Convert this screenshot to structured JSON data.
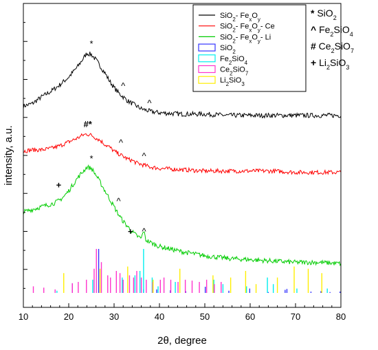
{
  "chart_data": {
    "type": "line",
    "xlabel": "2θ, degree",
    "ylabel": "intensity, a.u.",
    "xlim": [
      10,
      80
    ],
    "x_ticks": [
      "10",
      "20",
      "30",
      "40",
      "50",
      "60",
      "70",
      "80"
    ],
    "y_tick_labels_shown": false,
    "series": [
      {
        "name": "SiO2- FexOy",
        "legend_html": "SiO<tspan baseline-shift='sub' font-size='8'>2</tspan>- Fe<tspan baseline-shift='sub' font-size='8'>x</tspan>O<tspan baseline-shift='sub' font-size='8'>y</tspan>",
        "color": "#000000",
        "x": [
          10,
          12,
          14,
          16,
          18,
          20,
          21,
          22,
          23,
          24,
          25,
          26,
          27,
          28,
          29,
          30,
          31,
          32,
          33,
          34,
          35,
          36,
          37,
          38,
          40,
          45,
          50,
          55,
          60,
          65,
          70,
          75,
          80
        ],
        "y": [
          0.58,
          0.6,
          0.65,
          0.69,
          0.74,
          0.8,
          0.84,
          0.88,
          0.93,
          0.98,
          0.97,
          0.93,
          0.88,
          0.83,
          0.77,
          0.72,
          0.68,
          0.65,
          0.62,
          0.6,
          0.58,
          0.56,
          0.55,
          0.54,
          0.53,
          0.52,
          0.52,
          0.51,
          0.51,
          0.51,
          0.51,
          0.51,
          0.51
        ]
      },
      {
        "name": "SiO2- FexOy- Ce",
        "legend_html": "SiO<tspan baseline-shift='sub' font-size='8'>2</tspan>- Fe<tspan baseline-shift='sub' font-size='8'>x</tspan>O<tspan baseline-shift='sub' font-size='8'>y</tspan>- Ce",
        "color": "#ff0000",
        "x": [
          10,
          12,
          14,
          16,
          18,
          20,
          22,
          23,
          24,
          25,
          26,
          27,
          28,
          29,
          30,
          31,
          32,
          33,
          34,
          35,
          36,
          37,
          38,
          40,
          45,
          50,
          55,
          60,
          65,
          70,
          75,
          80
        ],
        "y": [
          0.24,
          0.25,
          0.25,
          0.26,
          0.28,
          0.31,
          0.34,
          0.36,
          0.37,
          0.36,
          0.34,
          0.32,
          0.29,
          0.27,
          0.24,
          0.22,
          0.2,
          0.18,
          0.17,
          0.15,
          0.14,
          0.13,
          0.12,
          0.11,
          0.1,
          0.09,
          0.09,
          0.09,
          0.09,
          0.08,
          0.08,
          0.08
        ]
      },
      {
        "name": "SiO2- FexOy- Li",
        "legend_html": "SiO<tspan baseline-shift='sub' font-size='8'>2</tspan>- Fe<tspan baseline-shift='sub' font-size='8'>x</tspan>O<tspan baseline-shift='sub' font-size='8'>y</tspan>- Li",
        "color": "#00cc00",
        "x": [
          10,
          12,
          14,
          16,
          17,
          18,
          19,
          20,
          21,
          22,
          23,
          24,
          25,
          26,
          27,
          28,
          29,
          30,
          31,
          32,
          33,
          34,
          35,
          36,
          36.5,
          37,
          38,
          40,
          45,
          50,
          55,
          60,
          65,
          70,
          75,
          80
        ],
        "y": [
          -0.22,
          -0.2,
          -0.18,
          -0.16,
          -0.15,
          -0.13,
          -0.1,
          -0.06,
          -0.01,
          0.04,
          0.08,
          0.12,
          0.11,
          0.06,
          0.0,
          -0.06,
          -0.12,
          -0.18,
          -0.24,
          -0.29,
          -0.33,
          -0.37,
          -0.4,
          -0.42,
          -0.36,
          -0.43,
          -0.45,
          -0.48,
          -0.52,
          -0.55,
          -0.57,
          -0.58,
          -0.59,
          -0.6,
          -0.6,
          -0.61
        ]
      }
    ],
    "reference_patterns": [
      {
        "name": "SiO2",
        "legend_html": "SiO<tspan baseline-shift='sub' font-size='8'>2</tspan>",
        "color": "#3333ff",
        "x": [
          20.8,
          26.6,
          36.5,
          39.4,
          40.2,
          42.4,
          45.8,
          50.1,
          55.3,
          59.9,
          64.0,
          67.7,
          68.1,
          73.4,
          75.6,
          77.6,
          79.8
        ],
        "intensity": [
          0.22,
          1.0,
          0.08,
          0.08,
          0.04,
          0.06,
          0.04,
          0.14,
          0.05,
          0.1,
          0.02,
          0.07,
          0.09,
          0.03,
          0.04,
          0.02,
          0.03
        ]
      },
      {
        "name": "Fe2SiO4",
        "legend_html": "Fe<tspan baseline-shift='sub' font-size='8'>2</tspan>SiO<tspan baseline-shift='sub' font-size='8'>4</tspan>",
        "color": "#00eeee",
        "x": [
          17.4,
          25.3,
          31.8,
          34.6,
          35.7,
          36.5,
          38.4,
          39.7,
          43.5,
          52.0,
          54.0,
          59.2,
          63.8,
          65.1,
          70.3,
          77.0
        ],
        "intensity": [
          0.05,
          0.3,
          0.35,
          0.4,
          0.5,
          1.0,
          0.35,
          0.15,
          0.25,
          0.3,
          0.2,
          0.15,
          0.35,
          0.2,
          0.1,
          0.1
        ]
      },
      {
        "name": "Ce2SiO7",
        "legend_html": "Ce<tspan baseline-shift='sub' font-size='8'>2</tspan>SiO<tspan baseline-shift='sub' font-size='8'>7</tspan>",
        "color": "#ff33cc",
        "x": [
          12.2,
          14.5,
          17.0,
          20.8,
          22.1,
          23.9,
          25.6,
          26.1,
          27.2,
          28.6,
          29.2,
          30.5,
          31.3,
          32.0,
          33.4,
          34.3,
          35.0,
          36.0,
          37.1,
          38.5,
          40.2,
          41.0,
          42.5,
          44.1,
          45.7,
          47.2,
          48.8,
          50.4,
          52.1,
          53.6
        ],
        "intensity": [
          0.15,
          0.12,
          0.08,
          0.22,
          0.25,
          0.3,
          0.55,
          1.0,
          0.7,
          0.4,
          0.35,
          0.5,
          0.45,
          0.3,
          0.4,
          0.35,
          0.5,
          0.35,
          0.3,
          0.25,
          0.3,
          0.35,
          0.3,
          0.25,
          0.3,
          0.28,
          0.25,
          0.3,
          0.2,
          0.25
        ]
      },
      {
        "name": "Li2SiO3",
        "legend_html": "Li<tspan baseline-shift='sub' font-size='8'>2</tspan>SiO<tspan baseline-shift='sub' font-size='8'>3</tspan>",
        "color": "#ffee00",
        "x": [
          18.9,
          26.9,
          33.0,
          38.6,
          44.5,
          51.8,
          55.7,
          59.0,
          61.3,
          66.0,
          69.7,
          72.8,
          75.8
        ],
        "intensity": [
          0.45,
          0.55,
          0.6,
          0.3,
          0.55,
          0.4,
          0.35,
          0.5,
          0.2,
          0.35,
          0.6,
          0.55,
          0.45
        ]
      }
    ],
    "annotations": [
      {
        "text": "*",
        "x": 25.0,
        "y": 1.03
      },
      {
        "text": "^",
        "x": 32.0,
        "y": 0.71
      },
      {
        "text": "^",
        "x": 37.8,
        "y": 0.58
      },
      {
        "text": "#*",
        "x": 24.2,
        "y": 0.42
      },
      {
        "text": "^",
        "x": 31.5,
        "y": 0.28
      },
      {
        "text": "^",
        "x": 36.6,
        "y": 0.18
      },
      {
        "text": "*",
        "x": 25.0,
        "y": 0.16
      },
      {
        "text": "+",
        "x": 17.8,
        "y": -0.04
      },
      {
        "text": "^",
        "x": 31.0,
        "y": -0.16
      },
      {
        "text": "+",
        "x": 33.6,
        "y": -0.39
      },
      {
        "text": "^",
        "x": 36.6,
        "y": -0.39
      }
    ],
    "side_legend": [
      {
        "symbol": "*",
        "label_html": "SiO<tspan baseline-shift='sub' font-size='9'>2</tspan>"
      },
      {
        "symbol": "^",
        "label_html": "Fe<tspan baseline-shift='sub' font-size='9'>2</tspan>SiO<tspan baseline-shift='sub' font-size='9'>4</tspan>"
      },
      {
        "symbol": "#",
        "label_html": "Ce<tspan baseline-shift='sub' font-size='9'>2</tspan>SiO<tspan baseline-shift='sub' font-size='9'>7</tspan>"
      },
      {
        "symbol": "+",
        "label_html": "Li<tspan baseline-shift='sub' font-size='9'>2</tspan>SiO<tspan baseline-shift='sub' font-size='9'>3</tspan>"
      }
    ]
  }
}
